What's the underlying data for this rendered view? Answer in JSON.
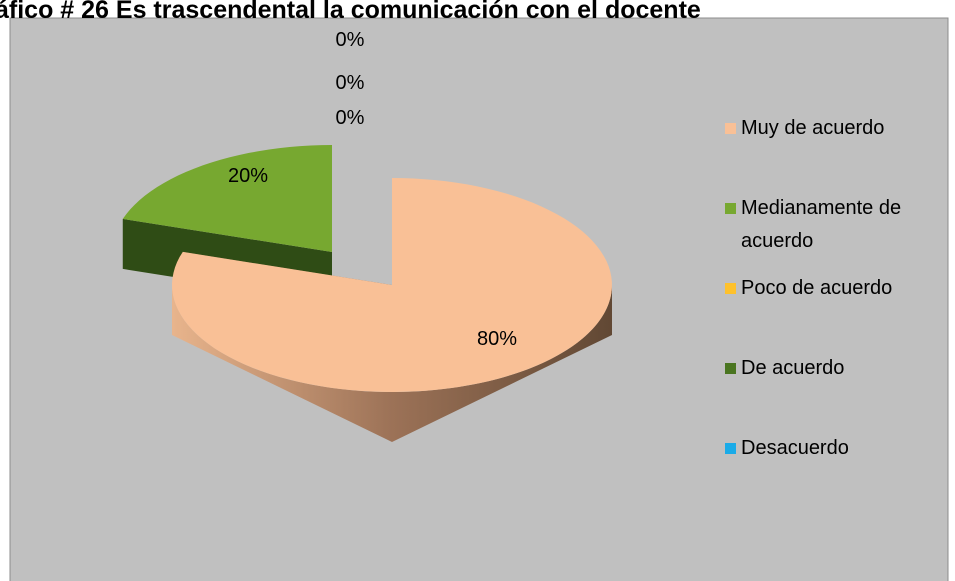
{
  "chart_data": {
    "type": "pie",
    "title": "áfico # 26 Es trascendental la comunicación con el docente",
    "categories": [
      "Muy de acuerdo",
      "Medianamente de acuerdo",
      "Poco de acuerdo",
      "De acuerdo",
      "Desacuerdo"
    ],
    "values": [
      80,
      20,
      0,
      0,
      0
    ],
    "value_labels": [
      "80%",
      "20%",
      "0%",
      "0%",
      "0%"
    ],
    "colors": [
      "#f9c096",
      "#77a830",
      "#fec12c",
      "#4a7520",
      "#1aabe8"
    ],
    "legend": "right"
  }
}
